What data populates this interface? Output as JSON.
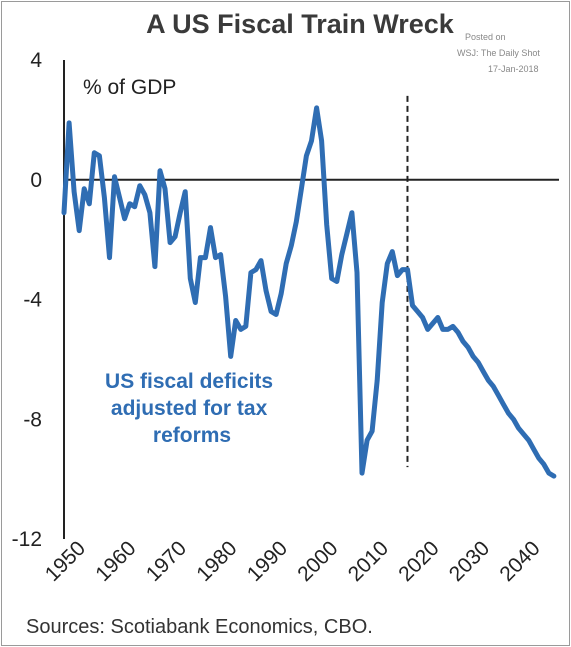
{
  "chart_data": {
    "type": "line",
    "title": "A US Fiscal Train Wreck",
    "ylabel": "% of GDP",
    "ylim": [
      -12,
      4
    ],
    "yticks": [
      4,
      0,
      -4,
      -8,
      -12
    ],
    "xlim": [
      1950,
      2048
    ],
    "xticks": [
      1950,
      1960,
      1970,
      1980,
      1990,
      2000,
      2010,
      2020,
      2030,
      2040
    ],
    "projection_start": 2018,
    "series": [
      {
        "color": "#2f6db3",
        "x": [
          1950,
          1951,
          1952,
          1953,
          1954,
          1955,
          1956,
          1957,
          1958,
          1959,
          1960,
          1961,
          1962,
          1963,
          1964,
          1965,
          1966,
          1967,
          1968,
          1969,
          1970,
          1971,
          1972,
          1973,
          1974,
          1975,
          1976,
          1977,
          1978,
          1979,
          1980,
          1981,
          1982,
          1983,
          1984,
          1985,
          1986,
          1987,
          1988,
          1989,
          1990,
          1991,
          1992,
          1993,
          1994,
          1995,
          1996,
          1997,
          1998,
          1999,
          2000,
          2001,
          2002,
          2003,
          2004,
          2005,
          2006,
          2007,
          2008,
          2009,
          2010,
          2011,
          2012,
          2013,
          2014,
          2015,
          2016,
          2017,
          2018,
          2019,
          2020,
          2021,
          2022,
          2023,
          2024,
          2025,
          2026,
          2027,
          2028,
          2029,
          2030,
          2031,
          2032,
          2033,
          2034,
          2035,
          2036,
          2037,
          2038,
          2039,
          2040,
          2041,
          2042,
          2043,
          2044,
          2045,
          2046,
          2047
        ],
        "values": [
          -1.1,
          1.9,
          -0.4,
          -1.7,
          -0.3,
          -0.8,
          0.9,
          0.8,
          -0.6,
          -2.6,
          0.1,
          -0.6,
          -1.3,
          -0.8,
          -0.9,
          -0.2,
          -0.5,
          -1.1,
          -2.9,
          0.3,
          -0.3,
          -2.1,
          -1.9,
          -1.1,
          -0.4,
          -3.3,
          -4.1,
          -2.6,
          -2.6,
          -1.6,
          -2.6,
          -2.5,
          -3.9,
          -5.9,
          -4.7,
          -5.0,
          -4.9,
          -3.1,
          -3.0,
          -2.7,
          -3.7,
          -4.4,
          -4.5,
          -3.8,
          -2.8,
          -2.2,
          -1.4,
          -0.3,
          0.8,
          1.3,
          2.4,
          1.3,
          -1.5,
          -3.3,
          -3.4,
          -2.5,
          -1.8,
          -1.1,
          -3.1,
          -9.8,
          -8.7,
          -8.4,
          -6.7,
          -4.1,
          -2.8,
          -2.4,
          -3.2,
          -3.0,
          -3.0,
          -4.2,
          -4.4,
          -4.6,
          -5.0,
          -4.8,
          -4.6,
          -5.0,
          -5.0,
          -4.9,
          -5.1,
          -5.4,
          -5.6,
          -5.9,
          -6.1,
          -6.4,
          -6.7,
          -6.9,
          -7.2,
          -7.5,
          -7.8,
          -8.0,
          -8.3,
          -8.5,
          -8.7,
          -9.0,
          -9.3,
          -9.5,
          -9.8,
          -9.9
        ]
      }
    ]
  },
  "annotation": [
    "US fiscal deficits",
    "adjusted for tax",
    "reforms"
  ],
  "watermark": [
    "Posted on",
    "WSJ: The Daily Shot",
    "17-Jan-2018"
  ],
  "source": "Sources: Scotiabank Economics, CBO."
}
